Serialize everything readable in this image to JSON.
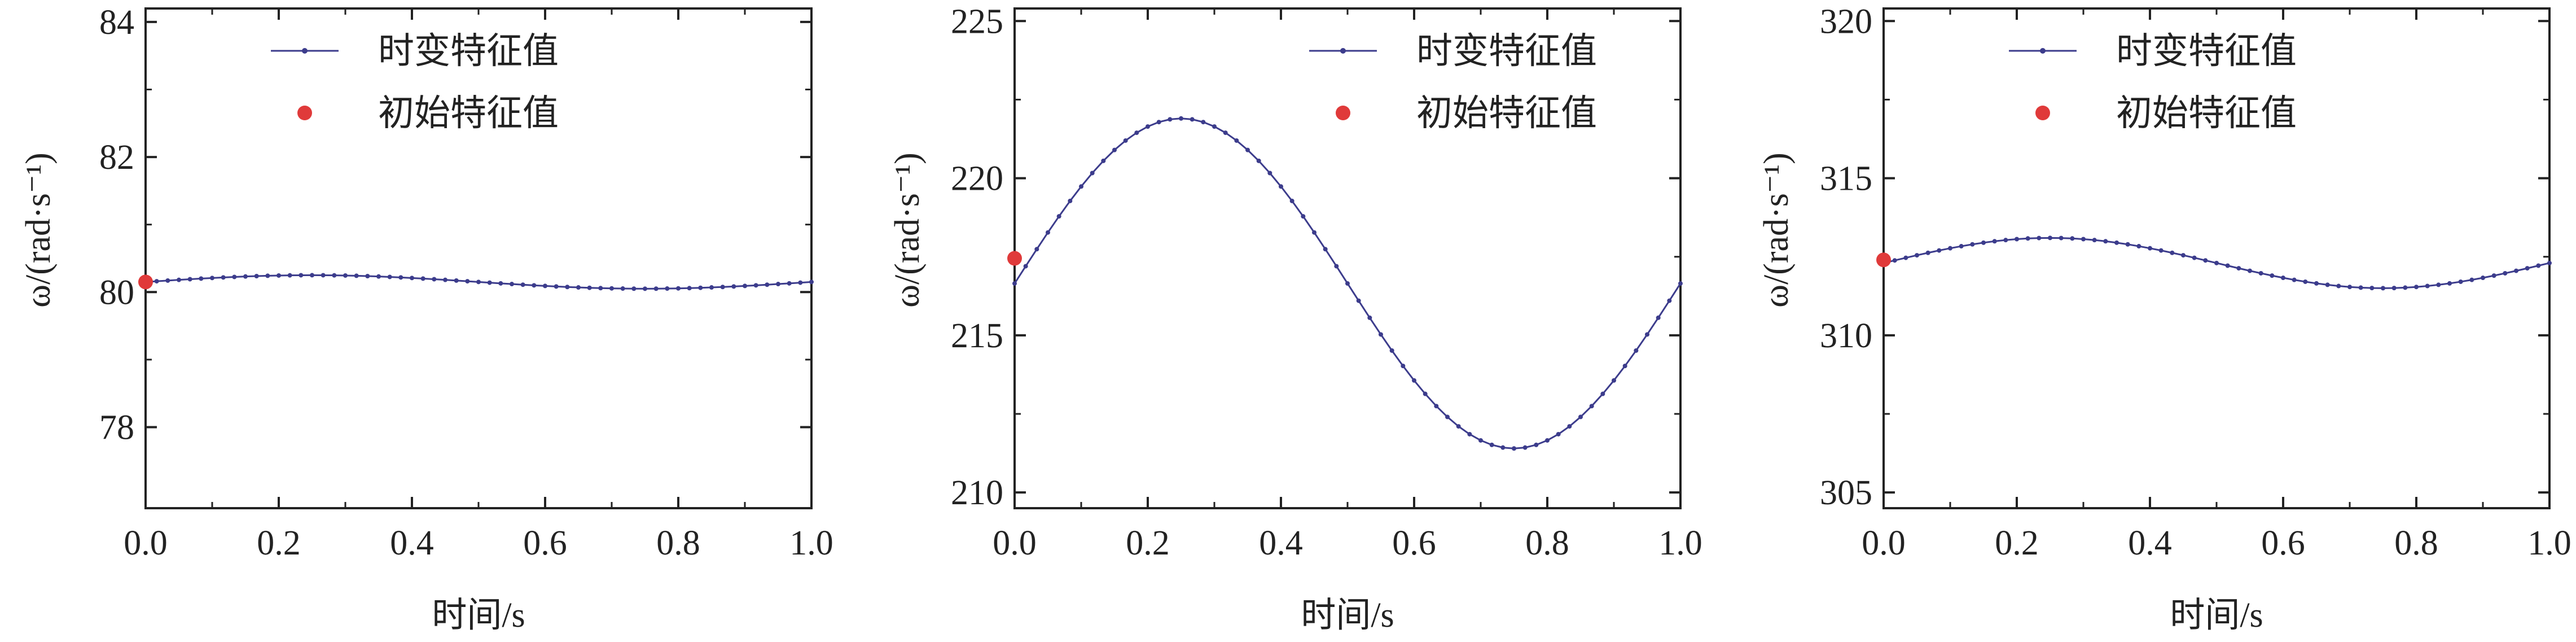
{
  "colors": {
    "line": "#3c3c8c",
    "initial_marker": "#e03a3a",
    "axis": "#222222"
  },
  "chart_data": [
    {
      "type": "line",
      "xlabel": "时间/s",
      "ylabel": "ω/(rad·s⁻¹)",
      "xlim": [
        0,
        1.0
      ],
      "ylim": [
        76.8,
        84.2
      ],
      "x_ticks": [
        0.0,
        0.2,
        0.4,
        0.6,
        0.8,
        1.0
      ],
      "x_tick_labels": [
        "0.0",
        "0.2",
        "0.4",
        "0.6",
        "0.8",
        "1.0"
      ],
      "y_ticks": [
        78,
        80,
        82,
        84
      ],
      "y_tick_labels": [
        "78",
        "80",
        "82",
        "84"
      ],
      "legend_position": "top-center",
      "legend": [
        "时变特征值",
        "初始特征值"
      ],
      "series": [
        {
          "name": "时变特征值",
          "type": "line",
          "mean": 80.15,
          "amplitude": 0.1,
          "phase": 0,
          "samples": 61,
          "x_range": [
            0,
            1.0
          ]
        },
        {
          "name": "初始特征值",
          "type": "scatter",
          "x": [
            0.0
          ],
          "y": [
            80.15
          ]
        }
      ]
    },
    {
      "type": "line",
      "xlabel": "时间/s",
      "ylabel": "ω/(rad·s⁻¹)",
      "xlim": [
        0,
        1.0
      ],
      "ylim": [
        209.5,
        225.4
      ],
      "x_ticks": [
        0.0,
        0.2,
        0.4,
        0.6,
        0.8,
        1.0
      ],
      "x_tick_labels": [
        "0.0",
        "0.2",
        "0.4",
        "0.6",
        "0.8",
        "1.0"
      ],
      "y_ticks": [
        210,
        215,
        220,
        225
      ],
      "y_tick_labels": [
        "210",
        "215",
        "220",
        "225"
      ],
      "legend_position": "top-right",
      "legend": [
        "时变特征值",
        "初始特征值"
      ],
      "series": [
        {
          "name": "时变特征值",
          "type": "line",
          "mean": 216.65,
          "amplitude": 5.25,
          "phase": 0,
          "samples": 61,
          "x_range": [
            0,
            1.0
          ]
        },
        {
          "name": "初始特征值",
          "type": "scatter",
          "x": [
            0.0
          ],
          "y": [
            217.45
          ]
        }
      ]
    },
    {
      "type": "line",
      "xlabel": "时间/s",
      "ylabel": "ω/(rad·s⁻¹)",
      "xlim": [
        0,
        1.0
      ],
      "ylim": [
        304.5,
        320.4
      ],
      "x_ticks": [
        0.0,
        0.2,
        0.4,
        0.6,
        0.8,
        1.0
      ],
      "x_tick_labels": [
        "0.0",
        "0.2",
        "0.4",
        "0.6",
        "0.8",
        "1.0"
      ],
      "y_ticks": [
        305,
        310,
        315,
        320
      ],
      "y_tick_labels": [
        "305",
        "310",
        "315",
        "320"
      ],
      "legend_position": "top-center",
      "legend": [
        "时变特征值",
        "初始特征值"
      ],
      "series": [
        {
          "name": "时变特征值",
          "type": "line",
          "mean": 312.3,
          "amplitude": 0.8,
          "phase": 0,
          "samples": 61,
          "x_range": [
            0,
            1.0
          ]
        },
        {
          "name": "初始特征值",
          "type": "scatter",
          "x": [
            0.0
          ],
          "y": [
            312.4
          ]
        }
      ]
    }
  ]
}
